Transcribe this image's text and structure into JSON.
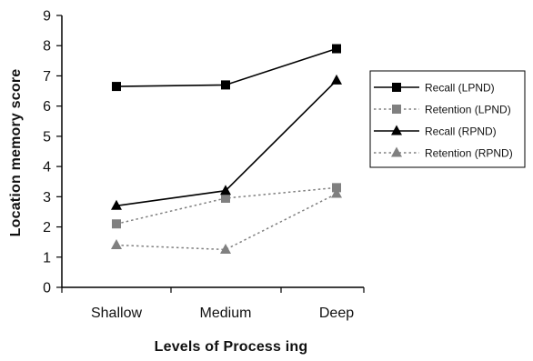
{
  "chart_data": {
    "type": "line",
    "title": "",
    "xlabel": "Levels of Process ing",
    "ylabel": "Location memory score",
    "categories": [
      "Shallow",
      "Medium",
      "Deep"
    ],
    "ylim": [
      0,
      9
    ],
    "yticks": [
      0,
      1,
      2,
      3,
      4,
      5,
      6,
      7,
      8,
      9
    ],
    "grid": false,
    "legend_position": "right",
    "series": [
      {
        "name": "Recall (LPND)",
        "values": [
          6.65,
          6.7,
          7.9
        ],
        "color": "#000000",
        "marker": "square",
        "dash": "solid"
      },
      {
        "name": "Retention (LPND)",
        "values": [
          2.1,
          2.95,
          3.3
        ],
        "color": "#808080",
        "marker": "square",
        "dash": "dotted"
      },
      {
        "name": "Recall (RPND)",
        "values": [
          2.7,
          3.2,
          6.85
        ],
        "color": "#000000",
        "marker": "triangle",
        "dash": "solid"
      },
      {
        "name": "Retention (RPND)",
        "values": [
          1.4,
          1.25,
          3.1
        ],
        "color": "#808080",
        "marker": "triangle",
        "dash": "dotted"
      }
    ]
  }
}
